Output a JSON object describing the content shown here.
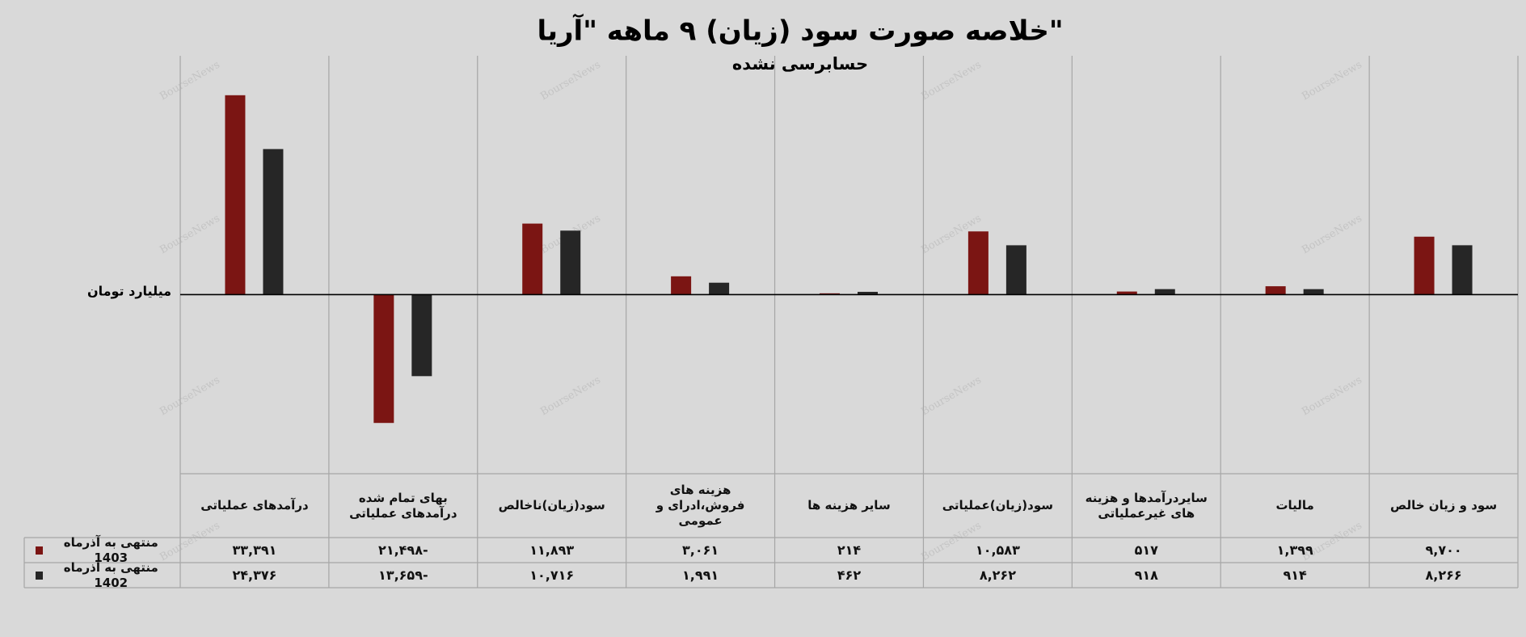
{
  "chart_data": {
    "type": "bar",
    "title": "خلاصه صورت سود (زیان) ۹ ماهه \"آریا\"",
    "subtitle": "حسابرسی نشده",
    "y_axis_label": "میلیارد تومان",
    "watermark": "BourseNews",
    "categories": [
      "درآمدهای عملیاتی",
      "بهای تمام شده درآمدهای عملیاتی",
      "سود(زیان)ناخالص",
      "هزینه های فروش،ادرای و عمومی",
      "سایر هزینه ها",
      "سود(زیان)عملیاتی",
      "سایردرآمدها و هزینه های غیرعملیاتی",
      "مالیات",
      "سود و زیان خالص"
    ],
    "series": [
      {
        "name": "منتهی به آذرماه 1403",
        "color": "#7b1513",
        "values": [
          33391,
          -21498,
          11893,
          3061,
          214,
          10583,
          517,
          1399,
          9700
        ],
        "value_labels": [
          "۳۳,۳۹۱",
          "-۲۱,۴۹۸",
          "۱۱,۸۹۳",
          "۳,۰۶۱",
          "۲۱۴",
          "۱۰,۵۸۳",
          "۵۱۷",
          "۱,۳۹۹",
          "۹,۷۰۰"
        ]
      },
      {
        "name": "منتهی به آذرماه 1402",
        "color": "#262626",
        "values": [
          24376,
          -13659,
          10716,
          1991,
          462,
          8262,
          918,
          914,
          8266
        ],
        "value_labels": [
          "۲۴,۳۷۶",
          "-۱۳,۶۵۹",
          "۱۰,۷۱۶",
          "۱,۹۹۱",
          "۴۶۲",
          "۸,۲۶۲",
          "۹۱۸",
          "۹۱۴",
          "۸,۲۶۶"
        ]
      }
    ],
    "ylim": [
      -30000,
      40000
    ],
    "data_table": true
  }
}
